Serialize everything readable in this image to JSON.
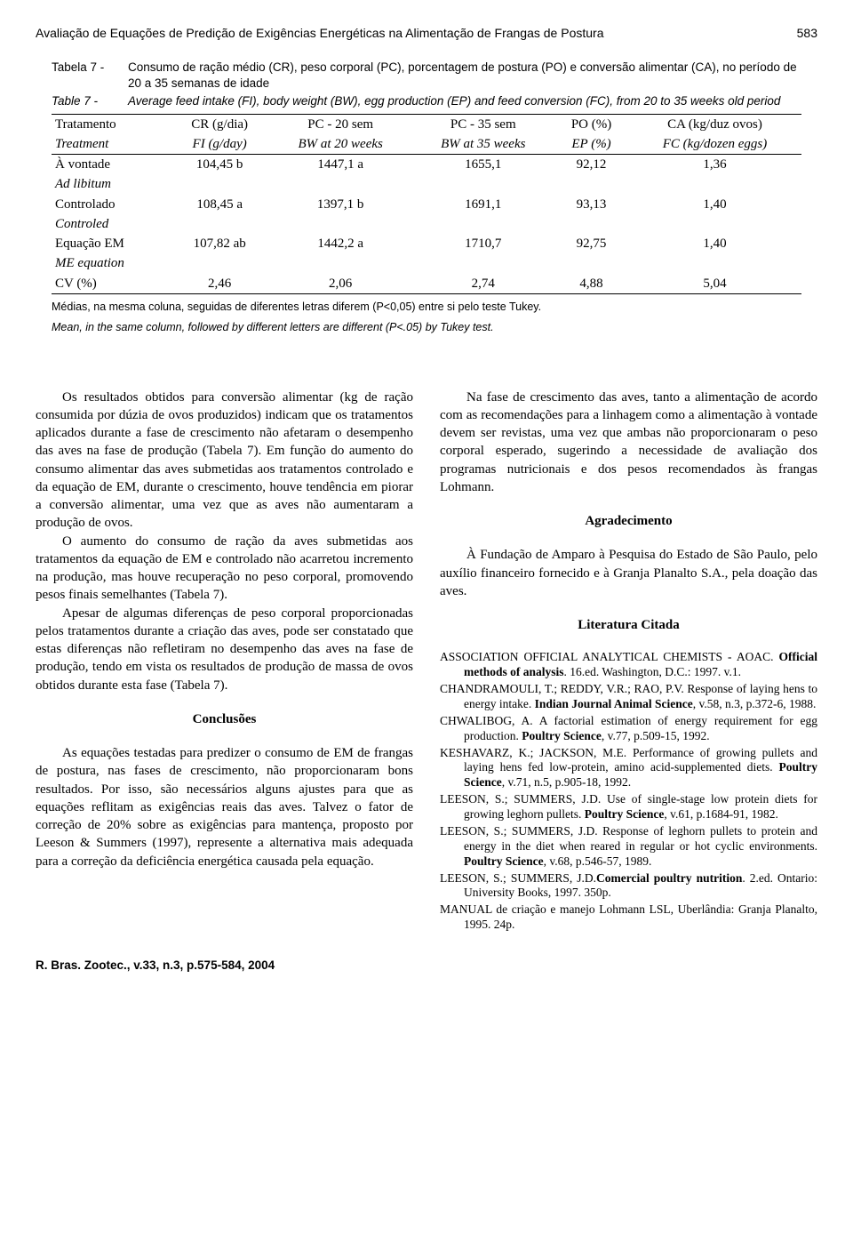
{
  "header": {
    "title": "Avaliação de Equações de Predição de Exigências Energéticas na Alimentação de Frangas de Postura",
    "page": "583"
  },
  "table7": {
    "caption_pt_label": "Tabela 7  -",
    "caption_pt": "Consumo de ração médio (CR), peso corporal (PC), porcentagem de postura (PO) e conversão alimentar (CA), no período de 20 a 35 semanas de idade",
    "caption_en_label": "Table 7  -",
    "caption_en": "Average feed intake (FI), body weight (BW), egg production (EP) and feed conversion (FC), from 20 to 35 weeks old period",
    "head_pt": [
      "Tratamento",
      "CR (g/dia)",
      "PC - 20 sem",
      "PC - 35 sem",
      "PO (%)",
      "CA (kg/duz ovos)"
    ],
    "head_en": [
      "Treatment",
      "FI (g/day)",
      "BW at 20 weeks",
      "BW at 35 weeks",
      "EP (%)",
      "FC (kg/dozen eggs)"
    ],
    "rows": [
      {
        "pt": "À vontade",
        "en": "Ad libitum",
        "v": [
          "104,45 b",
          "1447,1 a",
          "1655,1",
          "92,12",
          "1,36"
        ]
      },
      {
        "pt": "Controlado",
        "en": "Controled",
        "v": [
          "108,45 a",
          "1397,1 b",
          "1691,1",
          "93,13",
          "1,40"
        ]
      },
      {
        "pt": "Equação EM",
        "en": "ME equation",
        "v": [
          "107,82 ab",
          "1442,2 a",
          "1710,7",
          "92,75",
          "1,40"
        ]
      }
    ],
    "cv": {
      "label": "CV (%)",
      "v": [
        "2,46",
        "2,06",
        "2,74",
        "4,88",
        "5,04"
      ]
    },
    "footnote_pt": "Médias, na mesma coluna, seguidas de diferentes letras diferem (P<0,05) entre si pelo teste Tukey.",
    "footnote_en": "Mean, in the same column, followed by different letters are different (P<.05) by Tukey test."
  },
  "left": {
    "p1": "Os resultados obtidos para conversão alimentar (kg de ração consumida por dúzia de ovos produzidos) indicam que os tratamentos aplicados durante a fase de crescimento não afetaram o desempenho das aves na fase de produção (Tabela 7). Em função do aumento do consumo alimentar das aves submetidas aos tratamentos controlado e da equação de EM, durante o crescimento, houve tendência em piorar a conversão alimentar, uma vez que as aves não aumentaram a produção de ovos.",
    "p2": "O aumento do consumo de ração da aves submetidas aos tratamentos da equação de EM e controlado não acarretou incremento na produção, mas houve recuperação no peso corporal, promovendo pesos finais semelhantes (Tabela 7).",
    "p3": "Apesar de algumas diferenças de peso corporal proporcionadas pelos tratamentos durante a criação das aves, pode ser constatado que estas diferenças não refletiram no desempenho das aves na fase de produção, tendo em vista os resultados de produção de massa de ovos obtidos durante esta fase (Tabela 7).",
    "h1": "Conclusões",
    "p4": "As equações testadas para predizer o consumo de EM de frangas de postura, nas fases de crescimento, não proporcionaram bons resultados. Por isso, são necessários alguns ajustes para que as equações reflitam as exigências reais das aves. Talvez o fator de correção de 20% sobre as exigências para mantença, proposto por Leeson & Summers (1997), represente a alternativa mais adequada para a correção da deficiência energética causada pela equação."
  },
  "right": {
    "p1": "Na fase de crescimento das aves, tanto a alimentação de acordo com as recomendações para a linhagem como a alimentação à vontade devem ser revistas, uma vez que ambas não proporcionaram o peso corporal esperado, sugerindo a necessidade de avaliação dos programas nutricionais e dos pesos recomendados às frangas Lohmann.",
    "h1": "Agradecimento",
    "p2": "À Fundação de Amparo à Pesquisa do Estado de São Paulo, pelo auxílio financeiro fornecido e à Granja Planalto S.A., pela doação das aves.",
    "h2": "Literatura Citada",
    "refs": [
      [
        "ASSOCIATION OFFICIAL ANALYTICAL CHEMISTS - AOAC. ",
        "Official methods of analysis",
        ". 16.ed. Washington, D.C.: 1997. v.1."
      ],
      [
        "CHANDRAMOULI, T.; REDDY, V.R.; RAO, P.V. Response of laying hens to energy intake. ",
        "Indian Journal Animal Science",
        ", v.58, n.3, p.372-6, 1988."
      ],
      [
        "CHWALIBOG, A. A factorial estimation of energy requirement for egg production. ",
        "Poultry Science",
        ", v.77, p.509-15, 1992."
      ],
      [
        "KESHAVARZ, K.; JACKSON, M.E. Performance of growing pullets and laying hens fed low-protein, amino acid-supplemented diets. ",
        "Poultry Science",
        ", v.71, n.5, p.905-18, 1992."
      ],
      [
        "LEESON, S.; SUMMERS, J.D. Use of single-stage low protein diets for growing leghorn pullets. ",
        "Poultry Science",
        ", v.61, p.1684-91, 1982."
      ],
      [
        "LEESON, S.; SUMMERS, J.D. Response of leghorn pullets to protein and energy in the diet when reared in regular or hot cyclic environments. ",
        "Poultry Science",
        ", v.68, p.546-57, 1989."
      ],
      [
        "LEESON, S.; SUMMERS, J.D.",
        "Comercial poultry nutrition",
        ". 2.ed. Ontario: University Books, 1997. 350p."
      ],
      [
        "MANUAL de criação e manejo Lohmann LSL, Uberlândia: Granja Planalto, 1995. 24p.",
        "",
        ""
      ]
    ]
  },
  "footer": "R. Bras. Zootec., v.33, n.3, p.575-584, 2004"
}
